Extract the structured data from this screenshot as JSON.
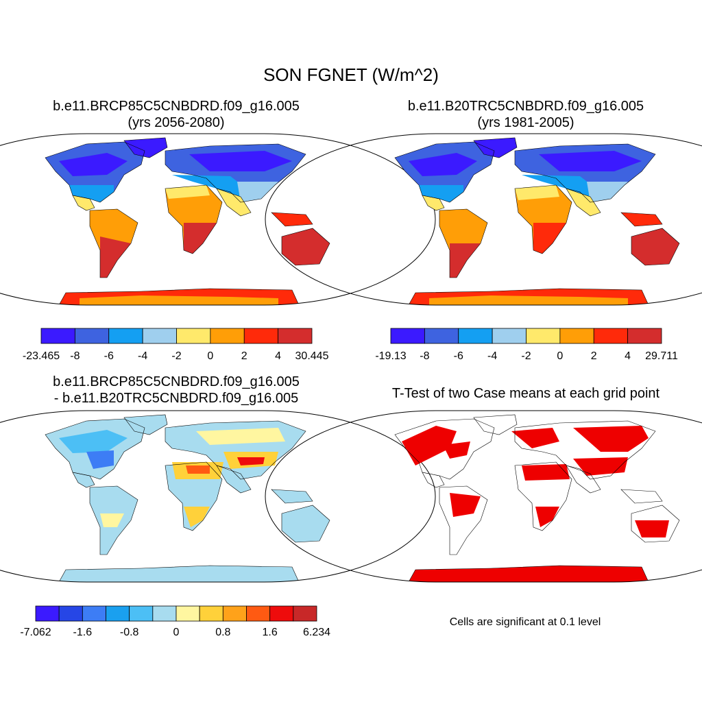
{
  "main_title": "SON FGNET (W/m^2)",
  "panels": [
    {
      "id": "future",
      "title_line1": "b.e11.BRCP85C5CNBDRD.f09_g16.005",
      "title_line2": "(yrs 2056-2080)"
    },
    {
      "id": "historical",
      "title_line1": "b.e11.B20TRC5CNBDRD.f09_g16.005",
      "title_line2": "(yrs 1981-2005)"
    },
    {
      "id": "difference",
      "title_line1": "b.e11.BRCP85C5CNBDRD.f09_g16.005",
      "title_line2": "- b.e11.B20TRC5CNBDRD.f09_g16.005"
    },
    {
      "id": "ttest",
      "title_line1": "T-Test of two Case means at each grid point",
      "title_line2": ""
    }
  ],
  "colorbars": [
    {
      "id": "future",
      "colors": [
        "#3b1aff",
        "#3e63e0",
        "#149ff2",
        "#9fcfee",
        "#ffe96b",
        "#ff9e07",
        "#ff2a0a",
        "#d42d2d"
      ],
      "labels": [
        "-23.465",
        "-8",
        "-6",
        "-4",
        "-2",
        "0",
        "2",
        "4",
        "30.445"
      ]
    },
    {
      "id": "historical",
      "colors": [
        "#3b1aff",
        "#3e63e0",
        "#149ff2",
        "#9fcfee",
        "#ffe96b",
        "#ff9e07",
        "#ff2a0a",
        "#d42d2d"
      ],
      "labels": [
        "-19.13",
        "-8",
        "-6",
        "-4",
        "-2",
        "0",
        "2",
        "4",
        "29.711"
      ]
    },
    {
      "id": "difference",
      "colors": [
        "#3b1aff",
        "#2646e6",
        "#3d7df5",
        "#1aa0ef",
        "#4cbff5",
        "#a8dcef",
        "#fff6a0",
        "#ffd13a",
        "#ffa21a",
        "#ff5a12",
        "#ee0c0c",
        "#c82828"
      ],
      "labels": [
        "-7.062",
        "-1.6",
        "-0.8",
        "0",
        "0.8",
        "1.6",
        "6.234"
      ]
    }
  ],
  "footnote": "Cells are significant at 0.1 level",
  "colors": {
    "significant": "#ee0000"
  }
}
